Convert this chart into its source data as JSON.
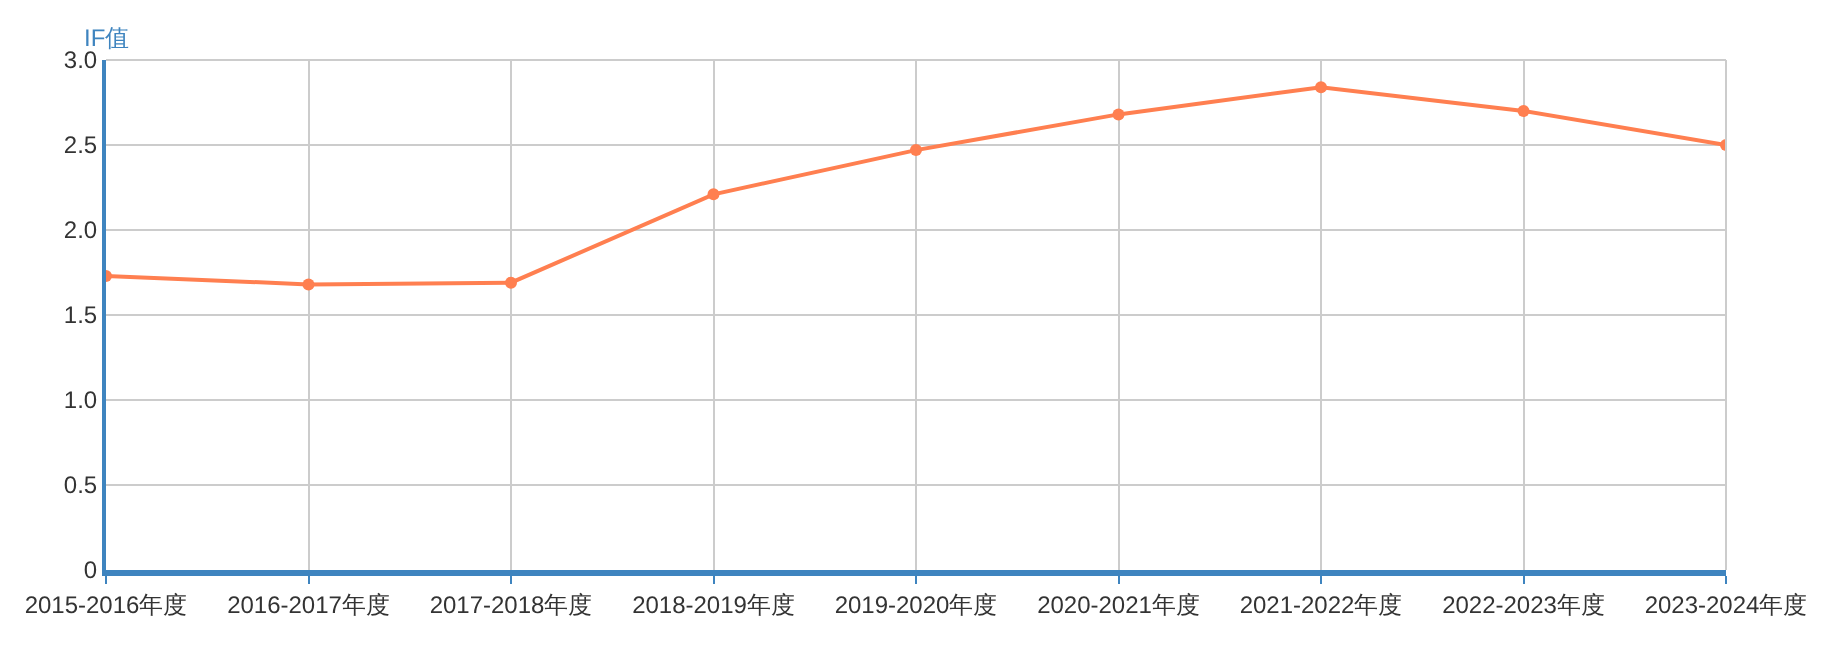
{
  "chart_data": {
    "type": "line",
    "ylabel": "IF值",
    "categories": [
      "2015-2016年度",
      "2016-2017年度",
      "2017-2018年度",
      "2018-2019年度",
      "2019-2020年度",
      "2020-2021年度",
      "2021-2022年度",
      "2022-2023年度",
      "2023-2024年度"
    ],
    "series": [
      {
        "color": "#ff7f50",
        "values": [
          1.73,
          1.68,
          1.69,
          2.21,
          2.47,
          2.68,
          2.84,
          2.7,
          2.5
        ]
      }
    ],
    "ylim": [
      0,
      3
    ],
    "yticks": [
      0,
      0.5,
      {
        "value": 1,
        "label": "1.0"
      },
      1.5,
      {
        "value": 2,
        "label": "2.0"
      },
      2.5,
      {
        "value": 3,
        "label": "3.0"
      }
    ],
    "grid": true,
    "marker": "circle",
    "line_style": "solid"
  }
}
